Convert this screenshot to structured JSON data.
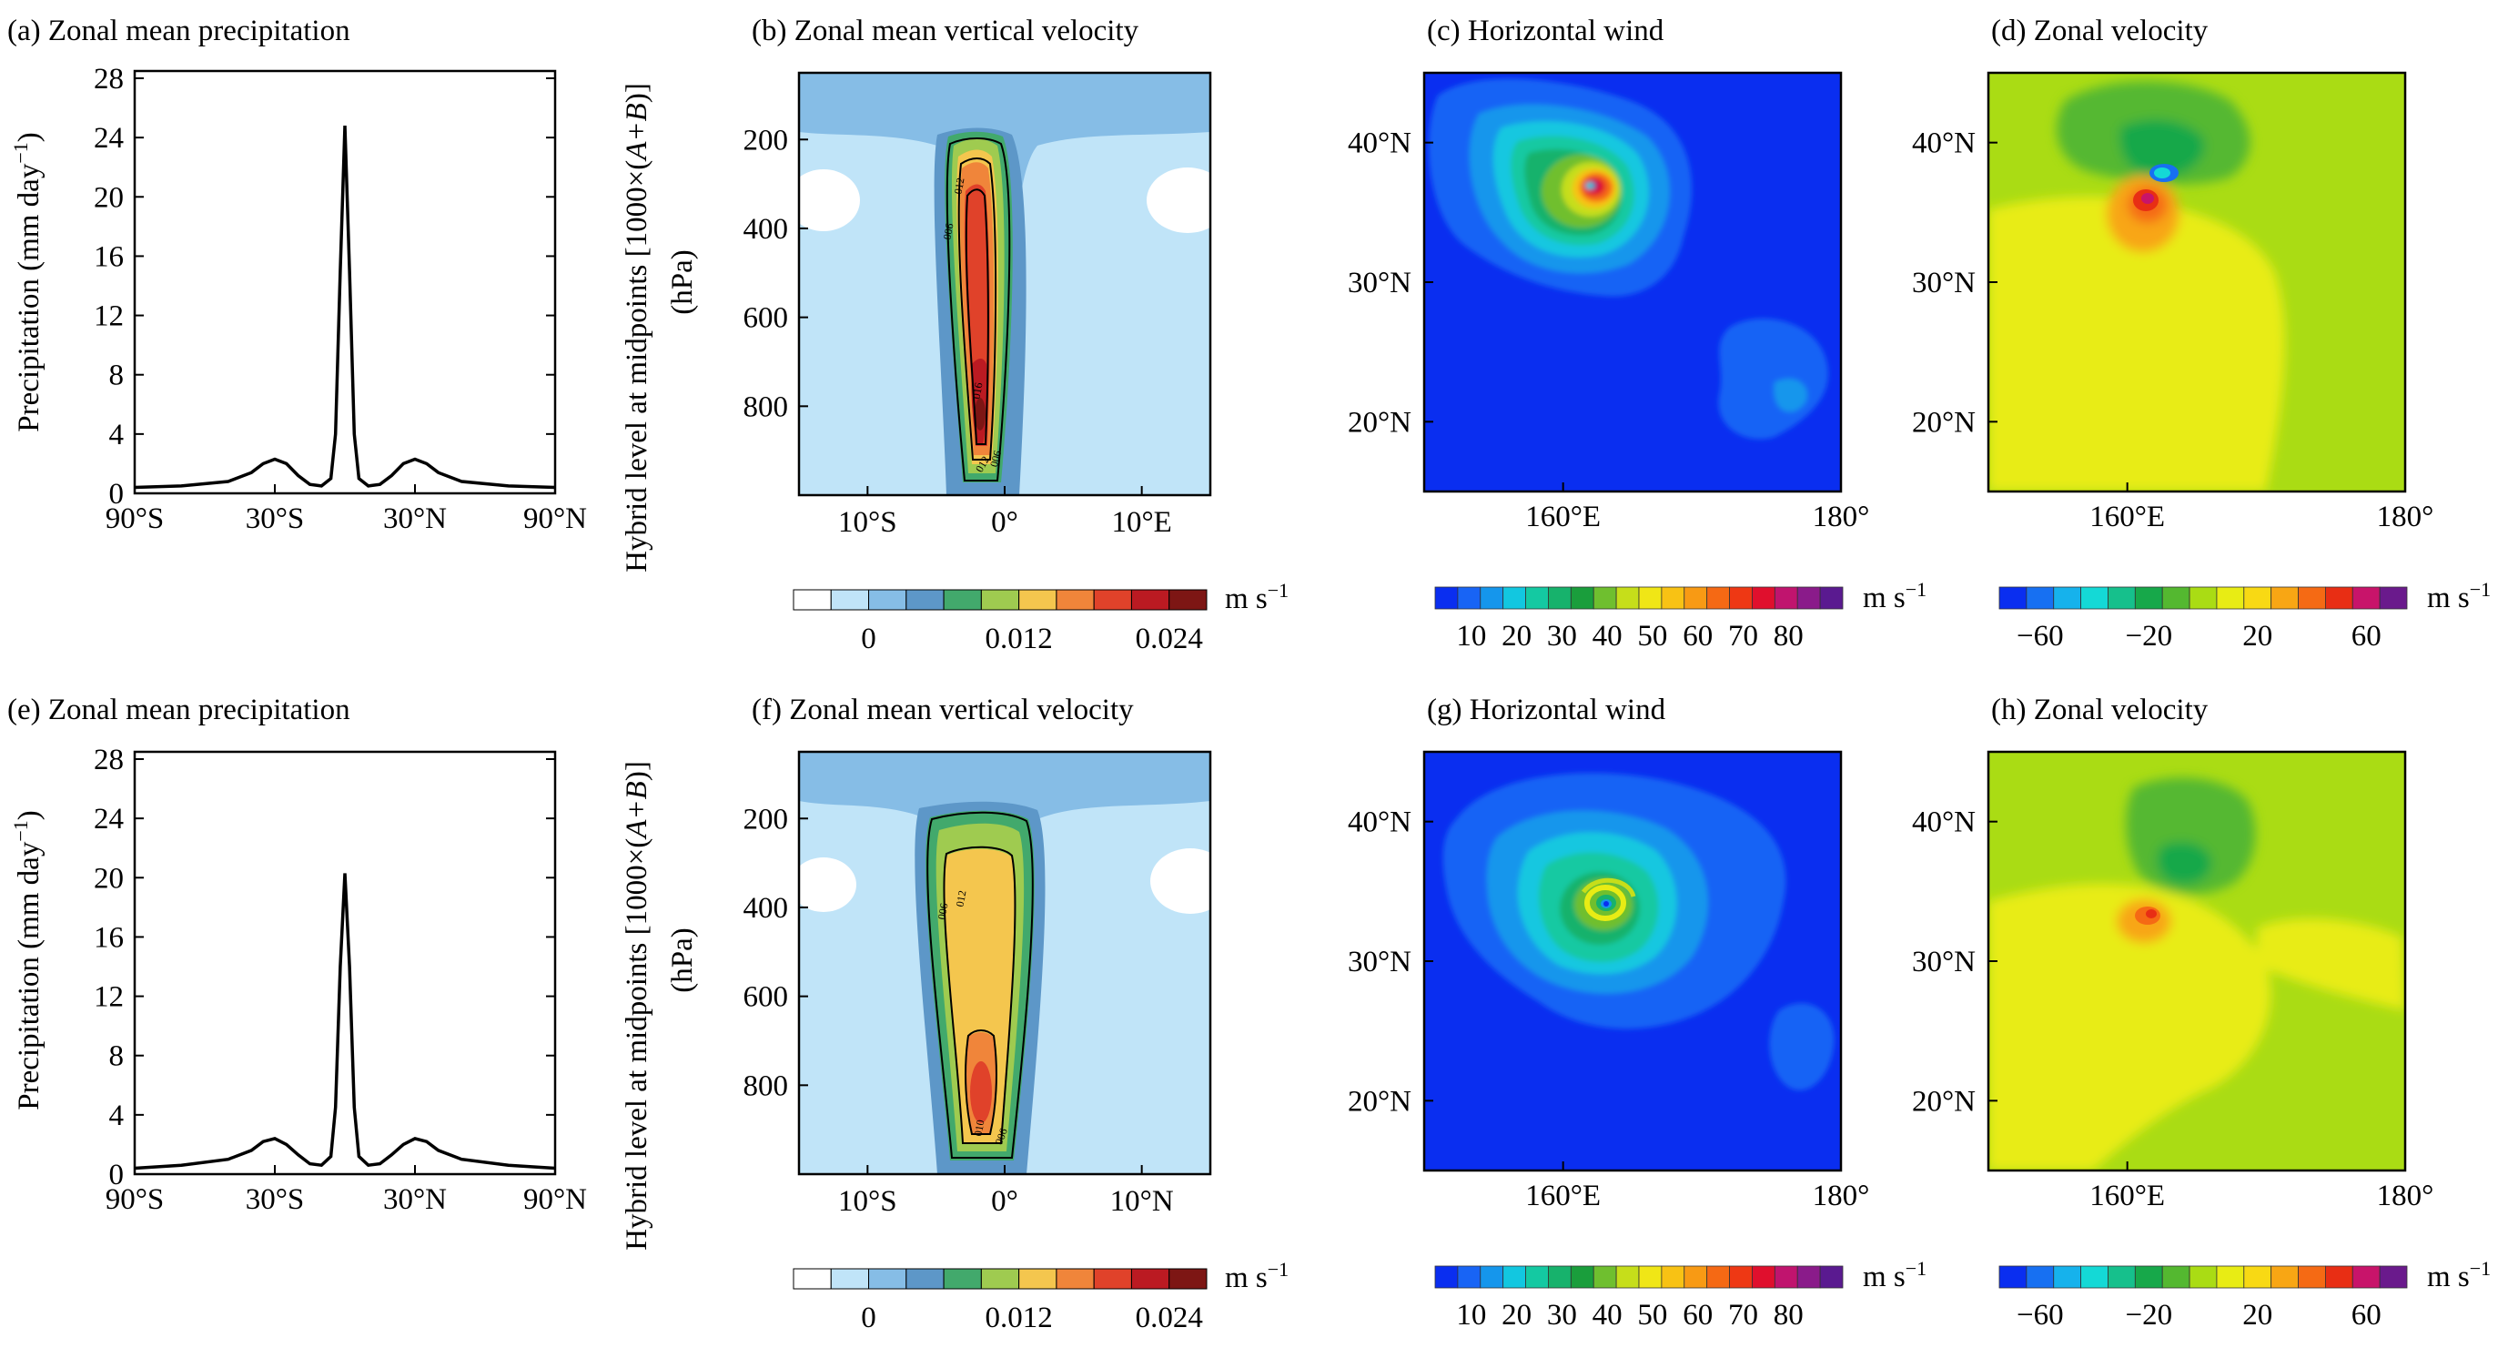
{
  "colors": {
    "vv_levels": [
      "#ffffff",
      "#c0e4f8",
      "#86bde6",
      "#5d97c8",
      "#42a96c",
      "#9fcb50",
      "#f4c64e",
      "#f0853a",
      "#e0422a",
      "#bb1a22",
      "#7d1614"
    ],
    "hw_levels": [
      "#0a2ef0",
      "#1864f5",
      "#1596ec",
      "#12c7e0",
      "#14c9a2",
      "#17b26c",
      "#1a9e3c",
      "#6fbf2f",
      "#c6de1a",
      "#f0e616",
      "#f8c214",
      "#f89a14",
      "#f56914",
      "#ee3814",
      "#e00f2d",
      "#c0146e",
      "#8a1b8a",
      "#5a1a90"
    ],
    "zv_levels": [
      "#0a2ef0",
      "#1770f2",
      "#16b2ec",
      "#14d9d6",
      "#16c08c",
      "#17a84a",
      "#54b830",
      "#aadc14",
      "#e8ec14",
      "#f8d914",
      "#f8a614",
      "#f56a14",
      "#e82e14",
      "#c8146a",
      "#6a1a8c"
    ]
  },
  "panels": [
    {
      "id": "a",
      "title": "(a) Zonal mean precipitation",
      "ylabel": "Precipitation (mm day",
      "ylabel_sup": "−1",
      "ylabel_close": ")",
      "xticks": [
        "90°S",
        "30°S",
        "30°N",
        "90°N"
      ],
      "yticks": [
        "0",
        "4",
        "8",
        "12",
        "16",
        "20",
        "24",
        "28"
      ]
    },
    {
      "id": "b",
      "title": "(b) Zonal mean vertical velocity",
      "ylabel_main": "Hybrid level at midpoints [1000×(",
      "ylabel_em": "A+B",
      "ylabel_close": ")]",
      "ylabel_unit": "(hPa)",
      "xticks": [
        "10°S",
        "0°",
        "10°E"
      ],
      "yticks": [
        "200",
        "400",
        "600",
        "800"
      ],
      "contour_labels": [
        "012",
        "006",
        "016",
        "012",
        "006"
      ],
      "cbar_ticks": [
        "0",
        "0.012",
        "0.024"
      ],
      "cbar_unit": "m s",
      "cbar_unit_sup": "−1"
    },
    {
      "id": "c",
      "title": "(c) Horizontal wind",
      "xticks": [
        "160°E",
        "180°"
      ],
      "yticks": [
        "40°N",
        "30°N",
        "20°N"
      ],
      "cbar_ticks": [
        "10",
        "20",
        "30",
        "40",
        "50",
        "60",
        "70",
        "80"
      ],
      "cbar_unit": "m s",
      "cbar_unit_sup": "−1"
    },
    {
      "id": "d",
      "title": "(d) Zonal velocity",
      "xticks": [
        "160°E",
        "180°"
      ],
      "yticks": [
        "40°N",
        "30°N",
        "20°N"
      ],
      "cbar_ticks": [
        "−60",
        "−20",
        "20",
        "60"
      ],
      "cbar_unit": "m s",
      "cbar_unit_sup": "−1"
    },
    {
      "id": "e",
      "title": "(e) Zonal mean precipitation",
      "ylabel": "Precipitation (mm day",
      "ylabel_sup": "−1",
      "ylabel_close": ")",
      "xticks": [
        "90°S",
        "30°S",
        "30°N",
        "90°N"
      ],
      "yticks": [
        "0",
        "4",
        "8",
        "12",
        "16",
        "20",
        "24",
        "28"
      ]
    },
    {
      "id": "f",
      "title": "(f) Zonal mean vertical velocity",
      "ylabel_main": "Hybrid level at midpoints [1000×(",
      "ylabel_em": "A+B",
      "ylabel_close": ")]",
      "ylabel_unit": "(hPa)",
      "xticks": [
        "10°S",
        "0°",
        "10°N"
      ],
      "yticks": [
        "200",
        "400",
        "600",
        "800"
      ],
      "contour_labels": [
        "012",
        "006",
        "010",
        "006"
      ],
      "cbar_ticks": [
        "0",
        "0.012",
        "0.024"
      ],
      "cbar_unit": "m s",
      "cbar_unit_sup": "−1"
    },
    {
      "id": "g",
      "title": "(g) Horizontal wind",
      "xticks": [
        "160°E",
        "180°"
      ],
      "yticks": [
        "40°N",
        "30°N",
        "20°N"
      ],
      "cbar_ticks": [
        "10",
        "20",
        "30",
        "40",
        "50",
        "60",
        "70",
        "80"
      ],
      "cbar_unit": "m s",
      "cbar_unit_sup": "−1"
    },
    {
      "id": "h",
      "title": "(h) Zonal velocity",
      "xticks": [
        "160°E",
        "180°"
      ],
      "yticks": [
        "40°N",
        "30°N",
        "20°N"
      ],
      "cbar_ticks": [
        "−60",
        "−20",
        "20",
        "60"
      ],
      "cbar_unit": "m s",
      "cbar_unit_sup": "−1"
    }
  ],
  "chart_data": [
    {
      "panel": "a",
      "type": "line",
      "x": [
        -90,
        -70,
        -50,
        -40,
        -35,
        -30,
        -25,
        -20,
        -15,
        -10,
        -6,
        -4,
        -2,
        0,
        2,
        4,
        6,
        10,
        15,
        20,
        25,
        30,
        35,
        40,
        50,
        70,
        90
      ],
      "y": [
        0.4,
        0.5,
        0.8,
        1.4,
        2.0,
        2.3,
        2.0,
        1.2,
        0.6,
        0.5,
        1.0,
        4.0,
        15.0,
        24.8,
        15.0,
        4.0,
        1.0,
        0.5,
        0.6,
        1.2,
        2.0,
        2.3,
        2.0,
        1.4,
        0.8,
        0.5,
        0.4
      ],
      "xlim": [
        -90,
        90
      ],
      "ylim": [
        0,
        28
      ]
    },
    {
      "panel": "e",
      "type": "line",
      "x": [
        -90,
        -70,
        -50,
        -40,
        -35,
        -30,
        -25,
        -20,
        -15,
        -10,
        -6,
        -4,
        -2,
        0,
        2,
        4,
        6,
        10,
        15,
        20,
        25,
        30,
        35,
        40,
        50,
        70,
        90
      ],
      "y": [
        0.4,
        0.6,
        1.0,
        1.6,
        2.2,
        2.4,
        2.0,
        1.3,
        0.7,
        0.6,
        1.2,
        4.5,
        14.0,
        20.3,
        14.0,
        4.5,
        1.2,
        0.6,
        0.7,
        1.3,
        2.0,
        2.4,
        2.2,
        1.6,
        1.0,
        0.6,
        0.4
      ],
      "xlim": [
        -90,
        90
      ],
      "ylim": [
        0,
        28
      ]
    },
    {
      "panel": "b",
      "type": "heatmap",
      "x_range": [
        -15,
        15
      ],
      "y_range_hPa": [
        50,
        1000
      ],
      "color_levels": [
        -0.003,
        0,
        0.003,
        0.006,
        0.009,
        0.012,
        0.015,
        0.018,
        0.021,
        0.024,
        0.027
      ],
      "peak_value": 0.026,
      "peak_x": 0,
      "peak_hPa": 800
    },
    {
      "panel": "f",
      "type": "heatmap",
      "x_range": [
        -15,
        15
      ],
      "y_range_hPa": [
        50,
        1000
      ],
      "color_levels": [
        -0.003,
        0,
        0.003,
        0.006,
        0.009,
        0.012,
        0.015,
        0.018,
        0.021,
        0.024,
        0.027
      ],
      "peak_value": 0.019,
      "peak_x": 0,
      "peak_hPa": 800
    },
    {
      "panel": "c",
      "type": "heatmap",
      "x_range_lon": [
        150,
        180
      ],
      "y_range_lat": [
        15,
        45
      ],
      "color_levels": [
        5,
        10,
        15,
        20,
        25,
        30,
        35,
        40,
        45,
        50,
        55,
        60,
        65,
        70,
        75,
        80,
        85
      ],
      "cyclone_center": [
        162,
        37
      ],
      "peak_value": 80
    },
    {
      "panel": "g",
      "type": "heatmap",
      "x_range_lon": [
        150,
        180
      ],
      "y_range_lat": [
        15,
        45
      ],
      "color_levels": [
        5,
        10,
        15,
        20,
        25,
        30,
        35,
        40,
        45,
        50,
        55,
        60,
        65,
        70,
        75,
        80,
        85
      ],
      "cyclone_center": [
        163,
        34.5
      ],
      "peak_value": 55
    },
    {
      "panel": "d",
      "type": "heatmap",
      "x_range_lon": [
        150,
        180
      ],
      "y_range_lat": [
        15,
        45
      ],
      "color_levels": [
        -70,
        -60,
        -50,
        -40,
        -30,
        -20,
        -10,
        0,
        10,
        20,
        30,
        40,
        50,
        60,
        70
      ],
      "cyclone_center": [
        162,
        37
      ]
    },
    {
      "panel": "h",
      "type": "heatmap",
      "x_range_lon": [
        150,
        180
      ],
      "y_range_lat": [
        15,
        45
      ],
      "color_levels": [
        -70,
        -60,
        -50,
        -40,
        -30,
        -20,
        -10,
        0,
        10,
        20,
        30,
        40,
        50,
        60,
        70
      ],
      "cyclone_center": [
        163,
        34.5
      ]
    }
  ]
}
